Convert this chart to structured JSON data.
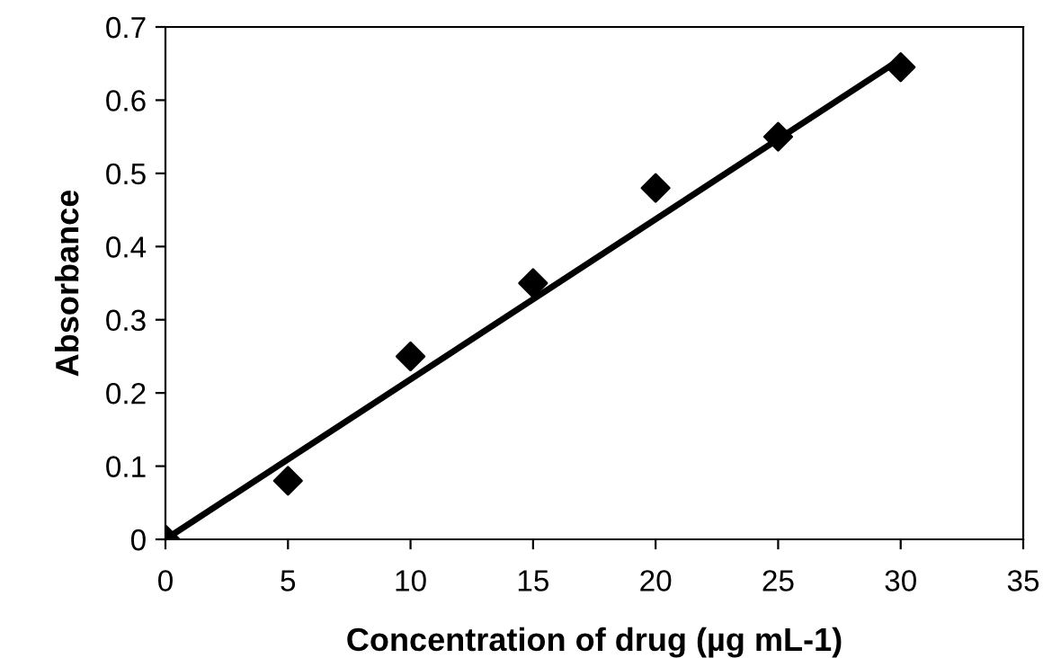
{
  "chart_data": {
    "type": "scatter",
    "xlabel": "Concentration of drug (µg mL-1)",
    "ylabel": "Absorbance",
    "x": [
      0,
      5,
      10,
      15,
      20,
      25,
      30
    ],
    "series": [
      {
        "color": "#000000",
        "marker": "diamond",
        "values": [
          0,
          0.08,
          0.25,
          0.35,
          0.48,
          0.55,
          0.645
        ]
      },
      {
        "type": "line",
        "color": "#000000",
        "marker": "none",
        "line_style": "solid",
        "x": [
          0,
          30
        ],
        "values": [
          0,
          0.656
        ]
      }
    ],
    "xlim": [
      0,
      35
    ],
    "xticks": [
      0,
      5,
      10,
      15,
      20,
      25,
      30,
      35
    ],
    "ylim": [
      0,
      0.7
    ],
    "yticks": [
      0,
      0.1,
      0.2,
      0.3,
      0.4,
      0.5,
      0.6,
      0.7
    ],
    "grid": false,
    "legend": false
  }
}
